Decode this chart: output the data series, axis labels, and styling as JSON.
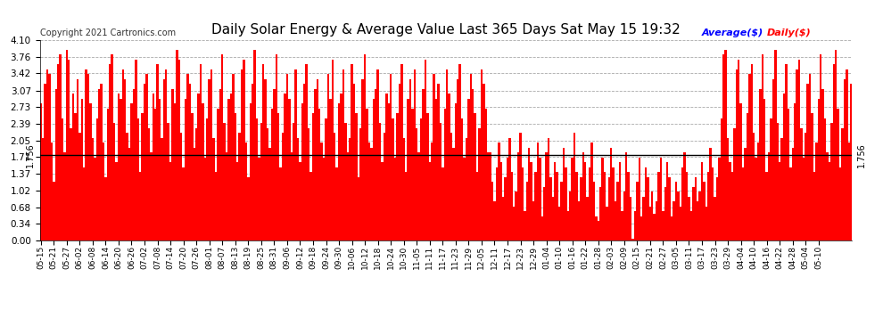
{
  "title": "Daily Solar Energy & Average Value Last 365 Days Sat May 15 19:32",
  "copyright": "Copyright 2021 Cartronics.com",
  "legend_avg": "Average($)",
  "legend_daily": "Daily($)",
  "avg_value": 1.756,
  "ylim": [
    0.0,
    4.1
  ],
  "yticks": [
    0.0,
    0.34,
    0.68,
    1.02,
    1.37,
    1.71,
    2.05,
    2.39,
    2.73,
    3.07,
    3.42,
    3.76,
    4.1
  ],
  "bar_color": "#ff0000",
  "avg_line_color": "#000000",
  "avg_label_color": "#0000ff",
  "daily_label_color": "#ff0000",
  "title_color": "#000000",
  "bg_color": "#ffffff",
  "grid_color": "#aaaaaa",
  "n_bars": 365,
  "bar_width": 1.0,
  "xtick_labels": [
    "05-15",
    "05-21",
    "05-27",
    "06-02",
    "06-08",
    "06-14",
    "06-20",
    "06-26",
    "07-02",
    "07-08",
    "07-14",
    "07-20",
    "07-26",
    "08-01",
    "08-07",
    "08-13",
    "08-19",
    "08-25",
    "08-31",
    "09-06",
    "09-12",
    "09-18",
    "09-24",
    "09-30",
    "10-06",
    "10-12",
    "10-18",
    "10-24",
    "10-30",
    "11-05",
    "11-11",
    "11-17",
    "11-23",
    "11-29",
    "12-05",
    "12-11",
    "12-17",
    "12-23",
    "12-29",
    "01-04",
    "01-10",
    "01-16",
    "01-22",
    "01-28",
    "02-03",
    "02-09",
    "02-15",
    "02-21",
    "02-27",
    "03-05",
    "03-11",
    "03-17",
    "03-23",
    "03-29",
    "04-04",
    "04-10",
    "04-16",
    "04-22",
    "04-28",
    "05-04",
    "05-10"
  ],
  "values": [
    2.8,
    2.1,
    3.2,
    3.5,
    3.4,
    2.0,
    1.2,
    3.1,
    3.6,
    3.8,
    2.5,
    1.8,
    3.9,
    3.7,
    2.3,
    3.0,
    2.6,
    3.3,
    2.2,
    2.9,
    1.5,
    3.5,
    3.4,
    2.8,
    2.1,
    1.7,
    2.5,
    3.1,
    3.2,
    2.0,
    1.3,
    2.7,
    3.6,
    3.8,
    2.4,
    1.6,
    3.0,
    2.9,
    3.5,
    3.3,
    2.2,
    1.9,
    2.8,
    3.1,
    3.7,
    2.5,
    1.4,
    2.6,
    3.2,
    3.4,
    2.3,
    1.8,
    3.0,
    2.7,
    3.6,
    2.9,
    2.1,
    3.3,
    3.5,
    2.4,
    1.6,
    3.1,
    2.8,
    3.9,
    3.7,
    2.2,
    1.5,
    2.9,
    3.4,
    3.2,
    2.6,
    1.9,
    2.3,
    3.0,
    3.6,
    2.8,
    1.7,
    2.5,
    3.3,
    3.5,
    2.1,
    1.4,
    2.7,
    3.1,
    3.8,
    2.4,
    1.8,
    2.9,
    3.0,
    3.4,
    2.6,
    1.6,
    2.2,
    3.5,
    3.7,
    2.0,
    1.3,
    2.8,
    3.2,
    3.9,
    2.5,
    1.7,
    2.4,
    3.6,
    3.3,
    2.3,
    1.9,
    2.7,
    3.1,
    3.8,
    2.6,
    1.5,
    2.2,
    3.0,
    3.4,
    2.9,
    1.8,
    2.4,
    3.5,
    2.1,
    1.6,
    2.8,
    3.2,
    3.6,
    2.3,
    1.4,
    2.6,
    3.1,
    3.3,
    2.7,
    2.0,
    1.7,
    2.5,
    3.4,
    2.9,
    3.7,
    2.2,
    1.5,
    2.8,
    3.0,
    3.5,
    2.4,
    1.8,
    2.1,
    3.6,
    3.2,
    2.6,
    1.3,
    2.3,
    3.3,
    3.8,
    2.7,
    2.0,
    1.9,
    2.9,
    3.1,
    3.5,
    2.4,
    1.6,
    2.2,
    3.0,
    2.8,
    3.4,
    2.5,
    1.7,
    2.6,
    3.2,
    3.6,
    2.1,
    1.4,
    2.9,
    3.3,
    2.7,
    3.5,
    2.3,
    1.8,
    2.5,
    3.1,
    3.7,
    2.6,
    1.6,
    2.0,
    3.4,
    2.9,
    3.2,
    2.4,
    1.5,
    2.7,
    3.5,
    3.0,
    2.2,
    1.9,
    2.8,
    3.3,
    3.6,
    2.5,
    1.7,
    2.1,
    2.9,
    3.4,
    3.1,
    2.6,
    1.4,
    2.3,
    3.5,
    3.2,
    2.7,
    1.8,
    1.8,
    1.2,
    0.8,
    1.5,
    2.0,
    1.6,
    0.9,
    1.3,
    1.7,
    2.1,
    1.4,
    0.7,
    1.0,
    1.8,
    2.2,
    1.5,
    0.6,
    1.2,
    1.9,
    1.6,
    0.8,
    1.4,
    2.0,
    1.7,
    0.5,
    1.1,
    1.8,
    2.1,
    1.3,
    0.9,
    1.6,
    1.4,
    0.7,
    1.2,
    1.9,
    1.5,
    0.6,
    1.0,
    1.7,
    2.2,
    1.4,
    0.8,
    1.3,
    1.8,
    1.6,
    0.9,
    1.5,
    2.0,
    1.2,
    0.5,
    0.4,
    1.1,
    1.7,
    1.4,
    0.7,
    1.3,
    1.9,
    1.5,
    0.8,
    1.2,
    1.6,
    0.6,
    1.0,
    1.8,
    1.4,
    0.9,
    0.04,
    0.6,
    1.2,
    1.7,
    0.5,
    0.9,
    1.5,
    1.3,
    0.7,
    1.0,
    0.55,
    0.8,
    1.4,
    1.7,
    0.6,
    1.1,
    1.6,
    1.3,
    0.5,
    0.8,
    1.2,
    1.0,
    0.7,
    1.5,
    1.8,
    1.4,
    0.9,
    0.6,
    1.1,
    1.3,
    0.8,
    1.0,
    1.6,
    1.2,
    0.7,
    1.4,
    1.9,
    1.5,
    0.9,
    1.3,
    1.7,
    2.5,
    3.8,
    3.9,
    2.1,
    1.6,
    1.4,
    2.3,
    3.5,
    3.7,
    2.8,
    1.5,
    1.9,
    2.6,
    3.4,
    3.6,
    2.2,
    1.7,
    2.0,
    3.1,
    3.8,
    2.9,
    1.4,
    1.8,
    2.5,
    3.3,
    3.9,
    2.4,
    1.6,
    2.1,
    3.0,
    3.6,
    2.7,
    1.5,
    1.9,
    2.8,
    3.5,
    3.7,
    2.3,
    1.7,
    2.2,
    3.2,
    3.4,
    2.6,
    1.4,
    2.0,
    2.9,
    3.8,
    3.1,
    2.5,
    1.8,
    1.6,
    2.4,
    3.6,
    3.9,
    2.7,
    1.5,
    2.3,
    3.3,
    3.5,
    2.0,
    3.2
  ]
}
